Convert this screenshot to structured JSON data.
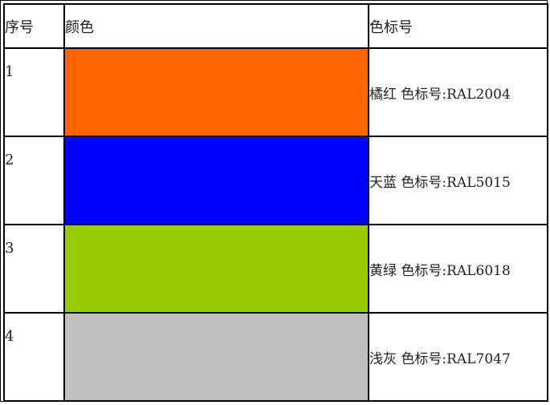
{
  "headers": {
    "index": "序号",
    "color": "颜色",
    "code": "色标号"
  },
  "rows": [
    {
      "index": "1",
      "swatch": "#FF6600",
      "desc": "橘红  色标号:RAL2004"
    },
    {
      "index": "2",
      "swatch": "#0000FF",
      "desc": "天蓝  色标号:RAL5015"
    },
    {
      "index": "3",
      "swatch": "#99CC00",
      "desc": "黄绿  色标号:RAL6018"
    },
    {
      "index": "4",
      "swatch": "#C0C0C0",
      "desc": "浅灰  色标号:RAL7047"
    }
  ]
}
